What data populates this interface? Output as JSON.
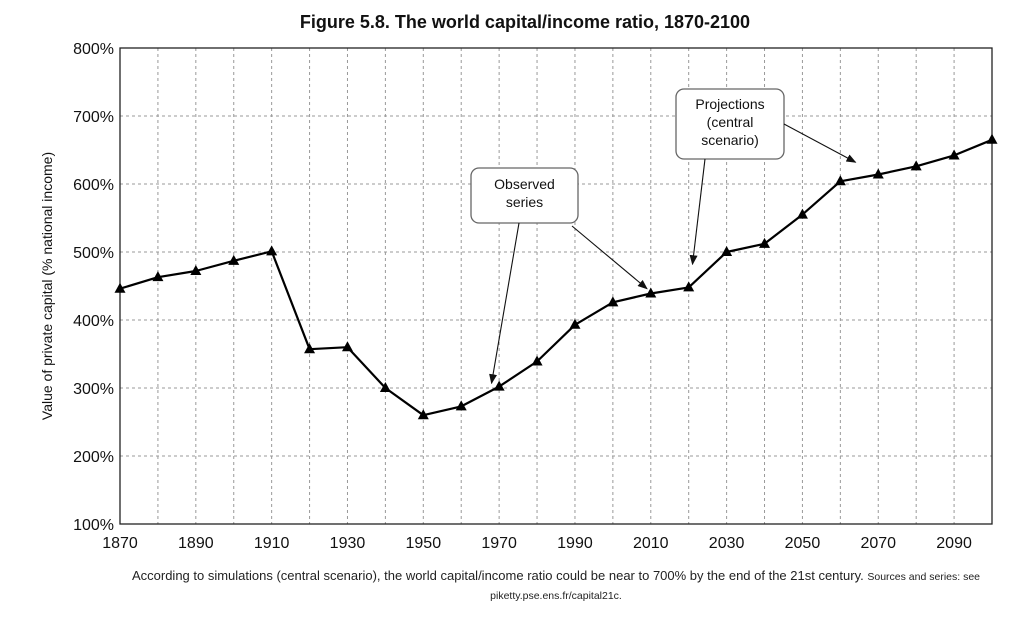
{
  "chart_data": {
    "type": "line",
    "title": "Figure 5.8. The world capital/income ratio, 1870-2100",
    "ylabel": "Value of private capital (% national income)",
    "xlabel": "",
    "xlim": [
      1870,
      2100
    ],
    "ylim": [
      100,
      800
    ],
    "x_ticks": [
      1870,
      1890,
      1910,
      1930,
      1950,
      1970,
      1990,
      2010,
      2030,
      2050,
      2070,
      2090
    ],
    "x_tick_labels": [
      "1870",
      "1890",
      "1910",
      "1930",
      "1950",
      "1970",
      "1990",
      "2010",
      "2030",
      "2050",
      "2070",
      "2090"
    ],
    "y_ticks": [
      100,
      200,
      300,
      400,
      500,
      600,
      700,
      800
    ],
    "y_tick_labels": [
      "100%",
      "200%",
      "300%",
      "400%",
      "500%",
      "600%",
      "700%",
      "800%"
    ],
    "grid": true,
    "series": [
      {
        "color": "#000000",
        "marker": "triangle",
        "x": [
          1870,
          1880,
          1890,
          1900,
          1910,
          1920,
          1930,
          1940,
          1950,
          1960,
          1970,
          1980,
          1990,
          2000,
          2010,
          2020,
          2030,
          2040,
          2050,
          2060,
          2070,
          2080,
          2090,
          2100
        ],
        "y": [
          446,
          463,
          472,
          487,
          501,
          357,
          360,
          300,
          260,
          273,
          302,
          339,
          393,
          426,
          439,
          448,
          500,
          512,
          555,
          604,
          614,
          626,
          642,
          665
        ]
      }
    ],
    "annotations": [
      {
        "text_lines": [
          "Observed",
          "series"
        ],
        "targets": [
          [
            1968,
            307
          ],
          [
            2009,
            446
          ]
        ]
      },
      {
        "text_lines": [
          "Projections",
          "(central",
          "scenario)"
        ],
        "targets": [
          [
            2021,
            482
          ],
          [
            2064,
            632
          ]
        ]
      }
    ]
  },
  "caption": {
    "text": "According to simulations (central scenario), the world capital/income ratio could be near to 700% by the end of the 21st century.",
    "source": "Sources and series: see piketty.pse.ens.fr/capital21c."
  }
}
